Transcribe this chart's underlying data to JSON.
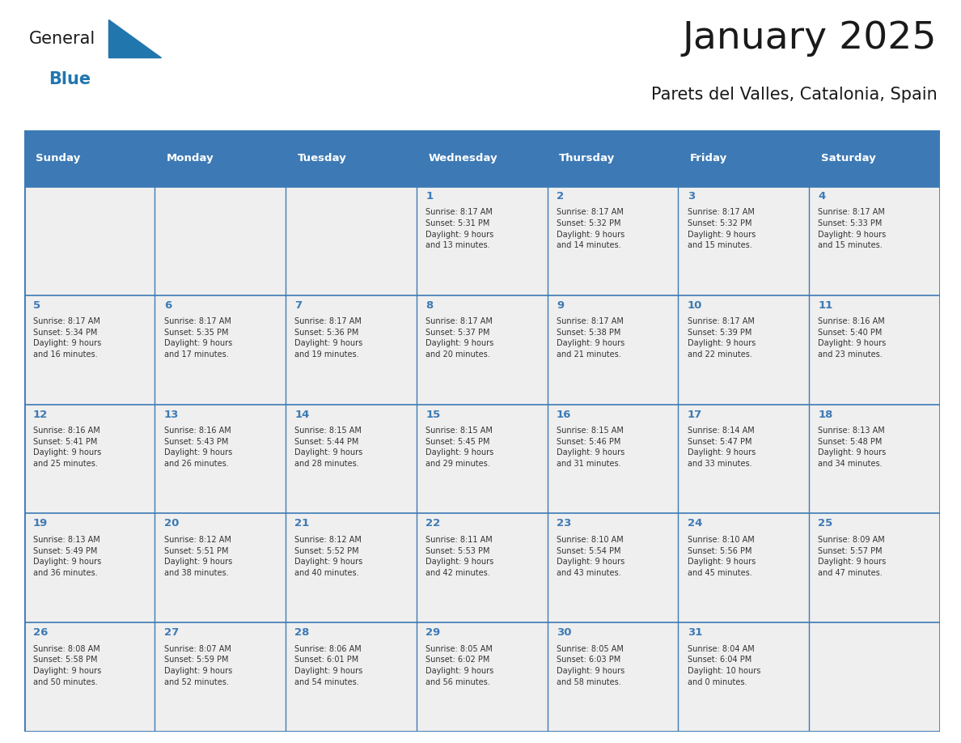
{
  "title": "January 2025",
  "subtitle": "Parets del Valles, Catalonia, Spain",
  "days_of_week": [
    "Sunday",
    "Monday",
    "Tuesday",
    "Wednesday",
    "Thursday",
    "Friday",
    "Saturday"
  ],
  "header_bg": "#3D7AB5",
  "header_text": "#FFFFFF",
  "cell_bg": "#EFEFEF",
  "cell_bg_white": "#FFFFFF",
  "border_color": "#3D7AB5",
  "text_color": "#333333",
  "day_num_color": "#3D7AB5",
  "title_color": "#1a1a1a",
  "subtitle_color": "#1a1a1a",
  "logo_color_general": "#1a1a1a",
  "logo_color_blue": "#2176AE",
  "logo_triangle_color": "#2176AE",
  "calendar_data": [
    [
      null,
      null,
      null,
      {
        "day": 1,
        "sunrise": "8:17 AM",
        "sunset": "5:31 PM",
        "daylight": "9 hours and 13 minutes"
      },
      {
        "day": 2,
        "sunrise": "8:17 AM",
        "sunset": "5:32 PM",
        "daylight": "9 hours and 14 minutes"
      },
      {
        "day": 3,
        "sunrise": "8:17 AM",
        "sunset": "5:32 PM",
        "daylight": "9 hours and 15 minutes"
      },
      {
        "day": 4,
        "sunrise": "8:17 AM",
        "sunset": "5:33 PM",
        "daylight": "9 hours and 15 minutes"
      }
    ],
    [
      {
        "day": 5,
        "sunrise": "8:17 AM",
        "sunset": "5:34 PM",
        "daylight": "9 hours and 16 minutes"
      },
      {
        "day": 6,
        "sunrise": "8:17 AM",
        "sunset": "5:35 PM",
        "daylight": "9 hours and 17 minutes"
      },
      {
        "day": 7,
        "sunrise": "8:17 AM",
        "sunset": "5:36 PM",
        "daylight": "9 hours and 19 minutes"
      },
      {
        "day": 8,
        "sunrise": "8:17 AM",
        "sunset": "5:37 PM",
        "daylight": "9 hours and 20 minutes"
      },
      {
        "day": 9,
        "sunrise": "8:17 AM",
        "sunset": "5:38 PM",
        "daylight": "9 hours and 21 minutes"
      },
      {
        "day": 10,
        "sunrise": "8:17 AM",
        "sunset": "5:39 PM",
        "daylight": "9 hours and 22 minutes"
      },
      {
        "day": 11,
        "sunrise": "8:16 AM",
        "sunset": "5:40 PM",
        "daylight": "9 hours and 23 minutes"
      }
    ],
    [
      {
        "day": 12,
        "sunrise": "8:16 AM",
        "sunset": "5:41 PM",
        "daylight": "9 hours and 25 minutes"
      },
      {
        "day": 13,
        "sunrise": "8:16 AM",
        "sunset": "5:43 PM",
        "daylight": "9 hours and 26 minutes"
      },
      {
        "day": 14,
        "sunrise": "8:15 AM",
        "sunset": "5:44 PM",
        "daylight": "9 hours and 28 minutes"
      },
      {
        "day": 15,
        "sunrise": "8:15 AM",
        "sunset": "5:45 PM",
        "daylight": "9 hours and 29 minutes"
      },
      {
        "day": 16,
        "sunrise": "8:15 AM",
        "sunset": "5:46 PM",
        "daylight": "9 hours and 31 minutes"
      },
      {
        "day": 17,
        "sunrise": "8:14 AM",
        "sunset": "5:47 PM",
        "daylight": "9 hours and 33 minutes"
      },
      {
        "day": 18,
        "sunrise": "8:13 AM",
        "sunset": "5:48 PM",
        "daylight": "9 hours and 34 minutes"
      }
    ],
    [
      {
        "day": 19,
        "sunrise": "8:13 AM",
        "sunset": "5:49 PM",
        "daylight": "9 hours and 36 minutes"
      },
      {
        "day": 20,
        "sunrise": "8:12 AM",
        "sunset": "5:51 PM",
        "daylight": "9 hours and 38 minutes"
      },
      {
        "day": 21,
        "sunrise": "8:12 AM",
        "sunset": "5:52 PM",
        "daylight": "9 hours and 40 minutes"
      },
      {
        "day": 22,
        "sunrise": "8:11 AM",
        "sunset": "5:53 PM",
        "daylight": "9 hours and 42 minutes"
      },
      {
        "day": 23,
        "sunrise": "8:10 AM",
        "sunset": "5:54 PM",
        "daylight": "9 hours and 43 minutes"
      },
      {
        "day": 24,
        "sunrise": "8:10 AM",
        "sunset": "5:56 PM",
        "daylight": "9 hours and 45 minutes"
      },
      {
        "day": 25,
        "sunrise": "8:09 AM",
        "sunset": "5:57 PM",
        "daylight": "9 hours and 47 minutes"
      }
    ],
    [
      {
        "day": 26,
        "sunrise": "8:08 AM",
        "sunset": "5:58 PM",
        "daylight": "9 hours and 50 minutes"
      },
      {
        "day": 27,
        "sunrise": "8:07 AM",
        "sunset": "5:59 PM",
        "daylight": "9 hours and 52 minutes"
      },
      {
        "day": 28,
        "sunrise": "8:06 AM",
        "sunset": "6:01 PM",
        "daylight": "9 hours and 54 minutes"
      },
      {
        "day": 29,
        "sunrise": "8:05 AM",
        "sunset": "6:02 PM",
        "daylight": "9 hours and 56 minutes"
      },
      {
        "day": 30,
        "sunrise": "8:05 AM",
        "sunset": "6:03 PM",
        "daylight": "9 hours and 58 minutes"
      },
      {
        "day": 31,
        "sunrise": "8:04 AM",
        "sunset": "6:04 PM",
        "daylight": "10 hours and 0 minutes"
      },
      null
    ]
  ]
}
